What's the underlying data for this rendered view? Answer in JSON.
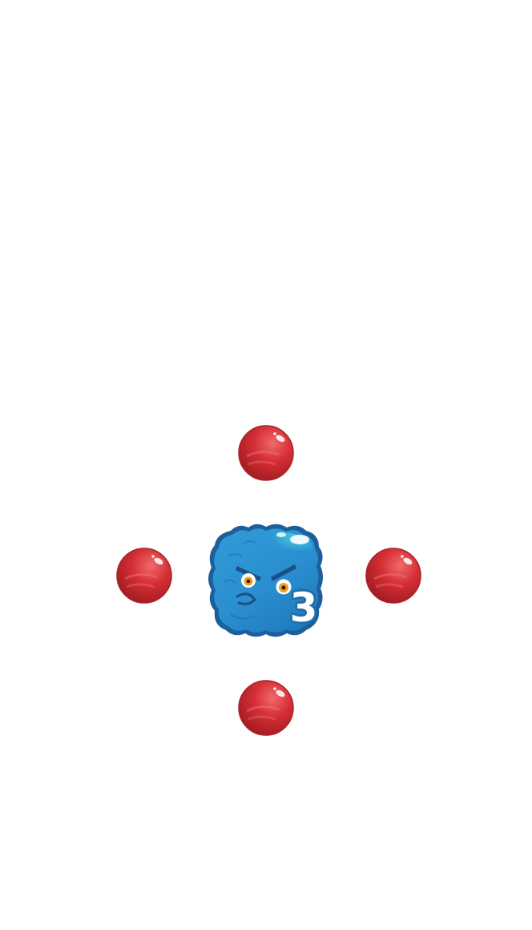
{
  "game": {
    "background_color": "#ffffff"
  },
  "monster": {
    "icon": "blue-blob-monster",
    "color": "#2a8fd0",
    "highlight_color": "#3fc6dc",
    "outline_color": "#1c5f9c",
    "eye_color": "#f2a01c",
    "count": "3"
  },
  "balls": {
    "icon": "red-ball",
    "color": "#c8242e",
    "positions": [
      "top",
      "left",
      "right",
      "bottom"
    ]
  }
}
